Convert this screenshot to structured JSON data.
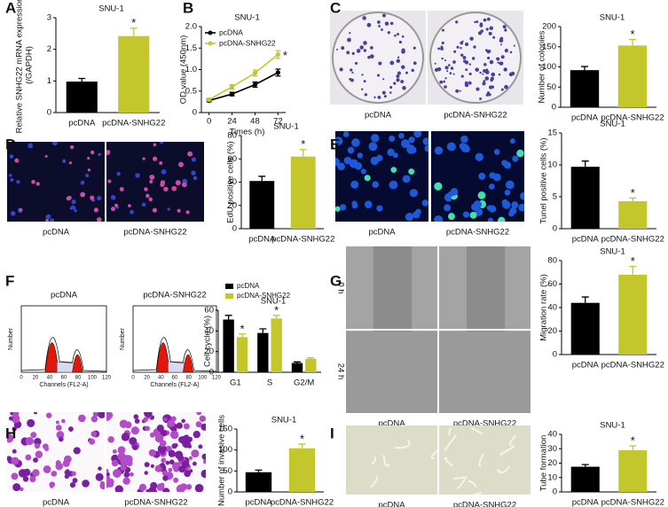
{
  "chart_data": [
    {
      "panel": "A",
      "type": "bar",
      "title": "SNU-1",
      "ylabel": [
        "Relative SNHG22 mRNA expression",
        "(/GAPDH)"
      ],
      "categories": [
        "pcDNA",
        "pcDNA-SNHG22"
      ],
      "values": [
        0.98,
        2.42
      ],
      "errors": [
        0.1,
        0.25
      ],
      "significance": [
        null,
        "*"
      ],
      "colors": [
        "#000000",
        "#c3c72c"
      ],
      "ylim": [
        0,
        3
      ],
      "yticks": [
        0,
        1,
        2,
        3
      ]
    },
    {
      "panel": "B",
      "type": "line",
      "title": "SNU-1",
      "xlabel": "Times (h)",
      "ylabel": "OD value (450nm)",
      "x": [
        0,
        24,
        48,
        72
      ],
      "xlim": [
        -8,
        80
      ],
      "xticks": [
        0,
        24,
        48,
        72
      ],
      "ylim": [
        0,
        2
      ],
      "yticks": [
        0,
        0.5,
        {
          "value": 1,
          "label": "1.0"
        },
        1.5,
        {
          "value": 2,
          "label": "2.0"
        }
      ],
      "legend": "upper left",
      "series": [
        {
          "name": "pcDNA",
          "color": "#000000",
          "values": [
            0.28,
            0.43,
            0.65,
            0.93
          ],
          "errors": [
            0.03,
            0.04,
            0.06,
            0.08
          ],
          "significance": [
            null,
            null,
            null,
            null
          ]
        },
        {
          "name": "pcDNA-SNHG22",
          "color": "#c3c72c",
          "values": [
            0.3,
            0.6,
            0.92,
            1.35
          ],
          "errors": [
            0.03,
            0.05,
            0.07,
            0.09
          ],
          "significance": [
            null,
            null,
            null,
            "*"
          ]
        }
      ]
    },
    {
      "panel": "C",
      "type": "bar",
      "title": "SNU-1",
      "ylabel": "Number of colonies",
      "image_labels": [
        "pcDNA",
        "pcDNA-SNHG22"
      ],
      "categories": [
        "pcDNA",
        "pcDNA-SNHG22"
      ],
      "values": [
        92,
        153
      ],
      "errors": [
        9,
        15
      ],
      "significance": [
        null,
        "*"
      ],
      "colors": [
        "#000000",
        "#c3c72c"
      ],
      "ylim": [
        0,
        200
      ],
      "yticks": [
        0,
        50,
        100,
        150,
        200
      ]
    },
    {
      "panel": "D",
      "type": "bar",
      "title": "SNU-1",
      "ylabel": "EdU positive cells (%)",
      "image_labels": [
        "pcDNA",
        "pcDNA-SNHG22"
      ],
      "categories": [
        "pcDNA",
        "pcDNA-SNHG22"
      ],
      "values": [
        41,
        62
      ],
      "errors": [
        4,
        6
      ],
      "significance": [
        null,
        "*"
      ],
      "colors": [
        "#000000",
        "#c3c72c"
      ],
      "ylim": [
        0,
        80
      ],
      "yticks": [
        0,
        20,
        40,
        60,
        80
      ]
    },
    {
      "panel": "E",
      "type": "bar",
      "title": "SNU-1",
      "ylabel": "Tunel positive cells (%)",
      "image_labels": [
        "pcDNA",
        "pcDNA-SNHG22"
      ],
      "categories": [
        "pcDNA",
        "pcDNA-SNHG22"
      ],
      "values": [
        9.7,
        4.3
      ],
      "errors": [
        0.9,
        0.5
      ],
      "significance": [
        null,
        "*"
      ],
      "colors": [
        "#000000",
        "#c3c72c"
      ],
      "ylim": [
        0,
        15
      ],
      "yticks": [
        0,
        5,
        10,
        15
      ]
    },
    {
      "panel": "F",
      "type": "grouped_bar",
      "title": "SNU-1",
      "ylabel": "Cell cycle (%)",
      "categories": [
        "G1",
        "S",
        "G2/M"
      ],
      "ylim": [
        0,
        60
      ],
      "yticks": [
        0,
        20,
        40,
        60
      ],
      "legend": "upper left",
      "series": [
        {
          "name": "pcDNA",
          "color": "#000000",
          "values": [
            51,
            38,
            9
          ],
          "errors": [
            4,
            4,
            1
          ],
          "significance": [
            null,
            null,
            null
          ]
        },
        {
          "name": "pcDNA-SNHG22",
          "color": "#c3c72c",
          "values": [
            34,
            52,
            13
          ],
          "errors": [
            3,
            3,
            1
          ],
          "significance": [
            "*",
            "*",
            null
          ]
        }
      ]
    },
    {
      "panel": "G",
      "type": "bar",
      "title": "SNU-1",
      "ylabel": "Migration rate (%)",
      "image_labels": [
        "pcDNA",
        "pcDNA-SNHG22"
      ],
      "row_labels": [
        "0 h",
        "24 h"
      ],
      "categories": [
        "pcDNA",
        "pcDNA-SNHG22"
      ],
      "values": [
        44,
        68
      ],
      "errors": [
        5,
        7
      ],
      "significance": [
        null,
        "*"
      ],
      "colors": [
        "#000000",
        "#c3c72c"
      ],
      "ylim": [
        0,
        80
      ],
      "yticks": [
        0,
        20,
        40,
        60,
        80
      ]
    },
    {
      "panel": "H",
      "type": "bar",
      "title": "SNU-1",
      "ylabel": "Number of invasive cells",
      "image_labels": [
        "pcDNA",
        "pcDNA-SNHG22"
      ],
      "categories": [
        "pcDNA",
        "pcDNA-SNHG22"
      ],
      "values": [
        47,
        104
      ],
      "errors": [
        5,
        10
      ],
      "significance": [
        null,
        "*"
      ],
      "colors": [
        "#000000",
        "#c3c72c"
      ],
      "ylim": [
        0,
        150
      ],
      "yticks": [
        0,
        50,
        100,
        150
      ]
    },
    {
      "panel": "I",
      "type": "bar",
      "title": "SNU-1",
      "ylabel": "Tube formation",
      "image_labels": [
        "pcDNA",
        "pcDNA-SNHG22"
      ],
      "categories": [
        "pcDNA",
        "pcDNA-SNHG22"
      ],
      "values": [
        17.5,
        29
      ],
      "errors": [
        1.5,
        3
      ],
      "significance": [
        null,
        "*"
      ],
      "colors": [
        "#000000",
        "#c3c72c"
      ],
      "ylim": [
        0,
        40
      ],
      "yticks": [
        0,
        10,
        20,
        30,
        40
      ]
    }
  ],
  "flow_histograms": {
    "titles": [
      "pcDNA",
      "pcDNA-SNHG22"
    ],
    "ylabel": "Number",
    "xlabel": "Channels (FL2-A)",
    "xticks": [
      0,
      20,
      40,
      60,
      80,
      100,
      120
    ]
  }
}
